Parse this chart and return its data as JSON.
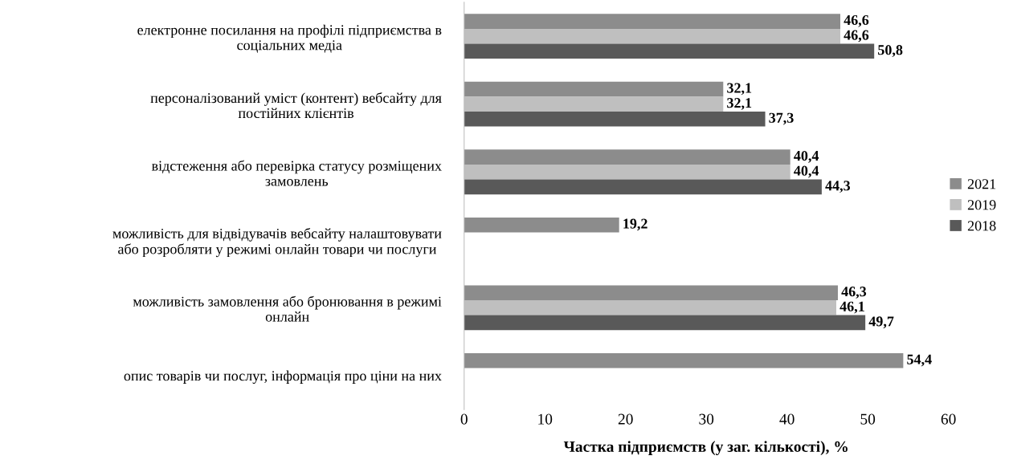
{
  "chart_data": {
    "type": "bar",
    "orientation": "horizontal",
    "xlabel": "Частка підприємств (у заг. кількості), %",
    "categories": [
      "електронне посилання на профілі підприємства в\nсоціальних медіа",
      "персоналізований уміст (контент) вебсайту для\nпостійних клієнтів",
      "відстеження або перевірка статусу розміщених\nзамовлень",
      "можливість для відвідувачів вебсайту налаштовувати\nабо розробляти у режимі онлайн товари чи послуги",
      "можливість замовлення або бронювання в режимі\nонлайн",
      "опис товарів чи послуг, інформація про ціни на них"
    ],
    "series": [
      {
        "name": "2021",
        "color": "#8c8c8c",
        "values": [
          46.6,
          32.1,
          40.4,
          19.2,
          46.3,
          54.4
        ],
        "value_labels": [
          "46,6",
          "32,1",
          "40,4",
          "19,2",
          "46,3",
          "54,4"
        ]
      },
      {
        "name": "2019",
        "color": "#bfbfbf",
        "values": [
          46.6,
          32.1,
          40.4,
          null,
          46.1,
          null
        ],
        "value_labels": [
          "46,6",
          "32,1",
          "40,4",
          null,
          "46,1",
          null
        ]
      },
      {
        "name": "2018",
        "color": "#595959",
        "values": [
          50.8,
          37.3,
          44.3,
          null,
          49.7,
          null
        ],
        "value_labels": [
          "50,8",
          "37,3",
          "44,3",
          null,
          "49,7",
          null
        ]
      }
    ],
    "xlim": [
      0,
      60
    ],
    "xticks": [
      0,
      10,
      20,
      30,
      40,
      50,
      60
    ],
    "grid": false,
    "legend": "right"
  }
}
